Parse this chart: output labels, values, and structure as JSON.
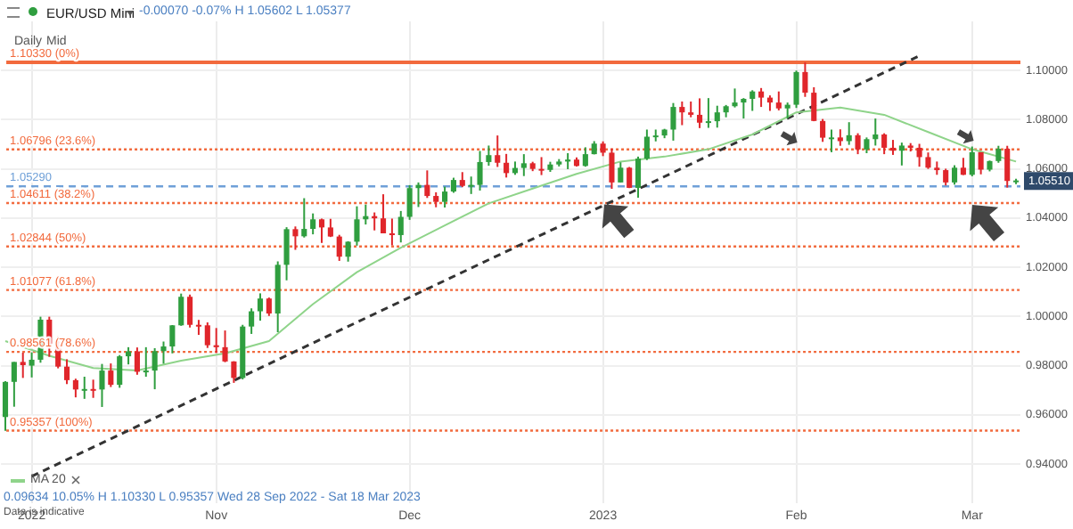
{
  "chart_data": {
    "type": "candlestick",
    "title": "EUR/USD Mini",
    "annotations": [
      "-0.00070 -0.07% H 1.05602 L 1.05377",
      "Daily",
      "Mid",
      "0.09634 10.05% H 1.10330 L 0.95357 Wed 28 Sep 2022 - Sat 18 Mar 2023",
      "Data is indicative",
      {
        "text": "1.05510",
        "y": 1.0551
      }
    ],
    "categories": [
      null,
      null,
      null,
      "2022",
      null,
      null,
      null,
      null,
      null,
      null,
      null,
      null,
      null,
      null,
      null,
      null,
      null,
      null,
      null,
      null,
      null,
      null,
      null,
      null,
      "Nov",
      null,
      null,
      null,
      null,
      null,
      null,
      null,
      null,
      null,
      null,
      null,
      null,
      null,
      null,
      null,
      null,
      null,
      null,
      null,
      null,
      null,
      "Dec",
      null,
      null,
      null,
      null,
      null,
      null,
      null,
      null,
      null,
      null,
      null,
      null,
      null,
      null,
      null,
      null,
      null,
      null,
      null,
      null,
      null,
      "2023",
      null,
      null,
      null,
      null,
      null,
      null,
      null,
      null,
      null,
      null,
      null,
      null,
      null,
      null,
      null,
      null,
      null,
      null,
      null,
      null,
      null,
      "Feb",
      null,
      null,
      null,
      null,
      null,
      null,
      null,
      null,
      null,
      null,
      null,
      null,
      null,
      null,
      null,
      null,
      null,
      null,
      null,
      "Mar",
      null,
      null,
      null,
      null,
      null
    ],
    "ohlc": [
      [
        0.9591,
        0.9737,
        0.9535,
        0.9734
      ],
      [
        0.9734,
        0.9815,
        0.9633,
        0.9815
      ],
      [
        0.9815,
        0.9853,
        0.975,
        0.9802
      ],
      [
        0.98,
        0.9854,
        0.9752,
        0.9824
      ],
      [
        0.9824,
        0.9999,
        0.9812,
        0.9987
      ],
      [
        0.9987,
        0.9999,
        0.9836,
        0.9885
      ],
      [
        0.9885,
        0.992,
        0.9789,
        0.9796
      ],
      [
        0.9796,
        0.9826,
        0.9725,
        0.9741
      ],
      [
        0.9741,
        0.9747,
        0.9671,
        0.9703
      ],
      [
        0.9703,
        0.9755,
        0.9665,
        0.9705
      ],
      [
        0.9705,
        0.9743,
        0.9669,
        0.9703
      ],
      [
        0.9703,
        0.9807,
        0.9632,
        0.978
      ],
      [
        0.978,
        0.9809,
        0.9713,
        0.9722
      ],
      [
        0.9722,
        0.9843,
        0.971,
        0.9838
      ],
      [
        0.9838,
        0.9875,
        0.9805,
        0.9858
      ],
      [
        0.9858,
        0.9874,
        0.9763,
        0.9775
      ],
      [
        0.9775,
        0.9875,
        0.9755,
        0.978
      ],
      [
        0.978,
        0.9871,
        0.9704,
        0.9859
      ],
      [
        0.9859,
        0.9898,
        0.9808,
        0.9878
      ],
      [
        0.9878,
        0.9965,
        0.985,
        0.9964
      ],
      [
        0.9964,
        1.0093,
        0.9962,
        1.008
      ],
      [
        1.008,
        1.0089,
        0.9955,
        0.9966
      ],
      [
        0.9966,
        0.9986,
        0.9925,
        0.9964
      ],
      [
        0.9964,
        0.9976,
        0.9872,
        0.9883
      ],
      [
        0.9883,
        0.9953,
        0.9852,
        0.9875
      ],
      [
        0.9875,
        0.9943,
        0.9814,
        0.9817
      ],
      [
        0.9817,
        0.9818,
        0.973,
        0.975
      ],
      [
        0.975,
        0.9966,
        0.9744,
        0.9959
      ],
      [
        0.9959,
        1.0033,
        0.9929,
        1.0021
      ],
      [
        1.0021,
        1.0094,
        0.9983,
        1.0073
      ],
      [
        1.0073,
        1.0077,
        1.0002,
        1.0012
      ],
      [
        1.0012,
        1.0224,
        0.9936,
        1.021
      ],
      [
        1.021,
        1.0363,
        1.0147,
        1.0355
      ],
      [
        1.0355,
        1.0366,
        1.0271,
        1.0326
      ],
      [
        1.0326,
        1.0481,
        1.0321,
        1.0356
      ],
      [
        1.0356,
        1.0419,
        1.0334,
        1.0395
      ],
      [
        1.0395,
        1.0398,
        1.0299,
        1.0362
      ],
      [
        1.0362,
        1.0397,
        1.0323,
        1.0325
      ],
      [
        1.0325,
        1.0332,
        1.0226,
        1.0243
      ],
      [
        1.0243,
        1.0306,
        1.0223,
        1.0304
      ],
      [
        1.0304,
        1.0448,
        1.0288,
        1.0395
      ],
      [
        1.0395,
        1.0455,
        1.0374,
        1.0408
      ],
      [
        1.0408,
        1.0423,
        1.035,
        1.0399
      ],
      [
        1.0399,
        1.0497,
        1.0338,
        1.0338
      ],
      [
        1.0338,
        1.0398,
        1.0289,
        1.0331
      ],
      [
        1.0331,
        1.0429,
        1.0301,
        1.0405
      ],
      [
        1.0405,
        1.0534,
        1.0393,
        1.0522
      ],
      [
        1.0522,
        1.0545,
        1.0445,
        1.0535
      ],
      [
        1.0535,
        1.0594,
        1.0482,
        1.049
      ],
      [
        1.049,
        1.0505,
        1.0444,
        1.0466
      ],
      [
        1.0466,
        1.0528,
        1.0443,
        1.0508
      ],
      [
        1.0508,
        1.0564,
        1.0503,
        1.0555
      ],
      [
        1.0555,
        1.0587,
        1.0526,
        1.0531
      ],
      [
        1.0531,
        1.0569,
        1.0498,
        1.0535
      ],
      [
        1.0535,
        1.0673,
        1.0512,
        1.0628
      ],
      [
        1.0628,
        1.0695,
        1.0613,
        1.0656
      ],
      [
        1.0656,
        1.0736,
        1.0608,
        1.0625
      ],
      [
        1.0625,
        1.0661,
        1.0565,
        1.0583
      ],
      [
        1.0583,
        1.063,
        1.0576,
        1.0604
      ],
      [
        1.0604,
        1.066,
        1.0571,
        1.0623
      ],
      [
        1.0623,
        1.0629,
        1.0591,
        1.06
      ],
      [
        1.06,
        1.0648,
        1.0575,
        1.0596
      ],
      [
        1.0596,
        1.0629,
        1.0588,
        1.0618
      ],
      [
        1.0618,
        1.064,
        1.061,
        1.063
      ],
      [
        1.063,
        1.0664,
        1.0599,
        1.0638
      ],
      [
        1.0638,
        1.0647,
        1.061,
        1.0612
      ],
      [
        1.0612,
        1.0688,
        1.0609,
        1.066
      ],
      [
        1.066,
        1.0713,
        1.0659,
        1.0703
      ],
      [
        1.0703,
        1.0712,
        1.0652,
        1.0666
      ],
      [
        1.0666,
        1.0683,
        1.0519,
        1.0545
      ],
      [
        1.0545,
        1.0627,
        1.0545,
        1.0605
      ],
      [
        1.0605,
        1.0608,
        1.0522,
        1.0523
      ],
      [
        1.0523,
        1.065,
        1.0483,
        1.0642
      ],
      [
        1.0642,
        1.076,
        1.0636,
        1.0731
      ],
      [
        1.0731,
        1.076,
        1.0712,
        1.0736
      ],
      [
        1.0736,
        1.0763,
        1.0725,
        1.076
      ],
      [
        1.076,
        1.0868,
        1.0715,
        1.0852
      ],
      [
        1.0852,
        1.0874,
        1.0778,
        1.083
      ],
      [
        1.083,
        1.0874,
        1.081,
        1.082
      ],
      [
        1.082,
        1.0887,
        1.0766,
        1.0788
      ],
      [
        1.0788,
        1.0888,
        1.0767,
        1.0794
      ],
      [
        1.0794,
        1.0857,
        1.0768,
        1.083
      ],
      [
        1.083,
        1.086,
        1.081,
        1.0855
      ],
      [
        1.0855,
        1.0927,
        1.085,
        1.087
      ],
      [
        1.087,
        1.0888,
        1.0805,
        1.0885
      ],
      [
        1.0885,
        1.092,
        1.0836,
        1.0915
      ],
      [
        1.0915,
        1.0929,
        1.0852,
        1.089
      ],
      [
        1.089,
        1.0899,
        1.0836,
        1.087
      ],
      [
        1.087,
        1.0915,
        1.0838,
        1.0846
      ],
      [
        1.0846,
        1.087,
        1.0805,
        1.0861
      ],
      [
        1.0861,
        1.1,
        1.0848,
        1.0994
      ],
      [
        1.0994,
        1.1033,
        1.0893,
        1.091
      ],
      [
        1.091,
        1.0932,
        1.0794,
        1.0795
      ],
      [
        1.0795,
        1.0803,
        1.071,
        1.0727
      ],
      [
        1.0727,
        1.076,
        1.0668,
        1.0728
      ],
      [
        1.0728,
        1.0761,
        1.0694,
        1.0713
      ],
      [
        1.0713,
        1.079,
        1.0698,
        1.0737
      ],
      [
        1.0737,
        1.0745,
        1.066,
        1.0679
      ],
      [
        1.0679,
        1.0728,
        1.0664,
        1.0721
      ],
      [
        1.0721,
        1.0805,
        1.0695,
        1.074
      ],
      [
        1.074,
        1.0745,
        1.066,
        1.0686
      ],
      [
        1.0686,
        1.0718,
        1.0657,
        1.0674
      ],
      [
        1.0674,
        1.0707,
        1.0614,
        1.0695
      ],
      [
        1.0695,
        1.0705,
        1.0671,
        1.0686
      ],
      [
        1.0686,
        1.0702,
        1.0609,
        1.0648
      ],
      [
        1.0648,
        1.0667,
        1.06,
        1.0605
      ],
      [
        1.0605,
        1.063,
        1.0576,
        1.0595
      ],
      [
        1.0595,
        1.0601,
        1.0533,
        1.0545
      ],
      [
        1.0545,
        1.0615,
        1.0536,
        1.0605
      ],
      [
        1.0605,
        1.0645,
        1.0575,
        1.0576
      ],
      [
        1.0576,
        1.0691,
        1.057,
        1.0668
      ],
      [
        1.0668,
        1.0668,
        1.0578,
        1.0597
      ],
      [
        1.0597,
        1.0634,
        1.059,
        1.0632
      ],
      [
        1.0632,
        1.0694,
        1.0625,
        1.0682
      ],
      [
        1.0682,
        1.0694,
        1.0524,
        1.0551
      ],
      [
        1.0551,
        1.056,
        1.0538,
        1.0553
      ]
    ],
    "colors": [
      "#2f9e3f",
      "#2f9e3f",
      "#e0262b",
      "#2f9e3f",
      "#2f9e3f",
      "#e0262b",
      "#e0262b",
      "#e0262b",
      "#e0262b",
      "#2f9e3f",
      "#e0262b",
      "#2f9e3f",
      "#e0262b",
      "#2f9e3f",
      "#2f9e3f",
      "#e0262b",
      "#2f9e3f",
      "#2f9e3f",
      "#2f9e3f",
      "#2f9e3f",
      "#2f9e3f",
      "#e0262b",
      "#e0262b",
      "#e0262b",
      "#e0262b",
      "#e0262b",
      "#e0262b",
      "#2f9e3f",
      "#2f9e3f",
      "#2f9e3f",
      "#e0262b",
      "#2f9e3f",
      "#2f9e3f",
      "#e0262b",
      "#2f9e3f",
      "#2f9e3f",
      "#e0262b",
      "#e0262b",
      "#e0262b",
      "#2f9e3f",
      "#2f9e3f",
      "#2f9e3f",
      "#e0262b",
      "#e0262b",
      "#e0262b",
      "#2f9e3f",
      "#2f9e3f",
      "#2f9e3f",
      "#e0262b",
      "#e0262b",
      "#2f9e3f",
      "#2f9e3f",
      "#e0262b",
      "#2f9e3f",
      "#2f9e3f",
      "#2f9e3f",
      "#e0262b",
      "#e0262b",
      "#2f9e3f",
      "#2f9e3f",
      "#e0262b",
      "#e0262b",
      "#2f9e3f",
      "#2f9e3f",
      "#2f9e3f",
      "#e0262b",
      "#2f9e3f",
      "#2f9e3f",
      "#e0262b",
      "#e0262b",
      "#2f9e3f",
      "#e0262b",
      "#2f9e3f",
      "#2f9e3f",
      "#2f9e3f",
      "#2f9e3f",
      "#2f9e3f",
      "#e0262b",
      "#e0262b",
      "#e0262b",
      "#2f9e3f",
      "#2f9e3f",
      "#2f9e3f",
      "#2f9e3f",
      "#2f9e3f",
      "#2f9e3f",
      "#e0262b",
      "#e0262b",
      "#e0262b",
      "#2f9e3f",
      "#2f9e3f",
      "#e0262b",
      "#e0262b",
      "#e0262b",
      "#2f9e3f",
      "#e0262b",
      "#2f9e3f",
      "#e0262b",
      "#2f9e3f",
      "#2f9e3f",
      "#e0262b",
      "#e0262b",
      "#2f9e3f",
      "#e0262b",
      "#e0262b",
      "#e0262b",
      "#e0262b",
      "#e0262b",
      "#2f9e3f",
      "#e0262b",
      "#2f9e3f",
      "#e0262b",
      "#2f9e3f",
      "#2f9e3f",
      "#e0262b",
      "#2f9e3f"
    ],
    "series": [
      {
        "name": "MA 20",
        "type": "line",
        "color": "#8fd48a",
        "values": [
          0.99,
          null,
          null,
          null,
          null,
          0.984,
          null,
          null,
          null,
          null,
          0.979,
          null,
          null,
          null,
          null,
          0.978,
          null,
          null,
          null,
          null,
          0.982,
          null,
          null,
          null,
          null,
          0.985,
          null,
          null,
          null,
          null,
          0.99,
          null,
          null,
          null,
          null,
          1.005,
          null,
          null,
          null,
          null,
          1.018,
          null,
          null,
          null,
          null,
          1.028,
          null,
          null,
          null,
          null,
          1.037,
          null,
          null,
          null,
          null,
          1.046,
          null,
          null,
          null,
          null,
          1.052,
          null,
          null,
          null,
          null,
          1.058,
          null,
          null,
          null,
          null,
          1.063,
          null,
          null,
          null,
          null,
          1.065,
          null,
          null,
          null,
          null,
          1.068,
          null,
          null,
          null,
          null,
          1.074,
          null,
          null,
          null,
          null,
          1.083,
          null,
          null,
          null,
          null,
          1.085,
          null,
          null,
          null,
          null,
          1.082,
          null,
          null,
          null,
          null,
          1.075,
          null,
          null,
          null,
          null,
          1.068,
          null,
          null,
          null,
          null,
          1.063
        ]
      },
      {
        "type": "line",
        "color": "#333333",
        "line_style": "dashed",
        "values": [
          null,
          null,
          null,
          0.935,
          null,
          null,
          null,
          null,
          null,
          null,
          null,
          null,
          null,
          null,
          null,
          null,
          null,
          null,
          null,
          null,
          null,
          null,
          null,
          null,
          null,
          null,
          null,
          null,
          null,
          null,
          null,
          null,
          null,
          null,
          null,
          null,
          null,
          null,
          null,
          null,
          null,
          null,
          null,
          null,
          null,
          null,
          null,
          null,
          null,
          null,
          null,
          null,
          null,
          null,
          null,
          null,
          null,
          null,
          null,
          null,
          null,
          null,
          null,
          null,
          null,
          null,
          null,
          null,
          null,
          null,
          null,
          null,
          null,
          null,
          null,
          null,
          null,
          null,
          null,
          null,
          null,
          null,
          null,
          null,
          null,
          null,
          null,
          null,
          null,
          null,
          null,
          null,
          null,
          null,
          null,
          null,
          null,
          null,
          null,
          null,
          null,
          null,
          null,
          null,
          1.106,
          null,
          null,
          null,
          null,
          null,
          null,
          null,
          null,
          null,
          null,
          null
        ]
      }
    ],
    "ylim": [
      0.924,
      1.12
    ],
    "yticks": [
      {
        "value": 0.94,
        "label": "0.94000"
      },
      {
        "value": 0.96,
        "label": "0.96000"
      },
      {
        "value": 0.98,
        "label": "0.98000"
      },
      {
        "value": 1.0,
        "label": "1.00000"
      },
      {
        "value": 1.02,
        "label": "1.02000"
      },
      {
        "value": 1.04,
        "label": "1.04000"
      },
      {
        "value": 1.06,
        "label": "1.06000"
      },
      {
        "value": 1.08,
        "label": "1.08000"
      },
      {
        "value": 1.1,
        "label": "1.10000"
      }
    ],
    "ref_lines": [
      {
        "axis": "y",
        "value": 1.1033,
        "label": "1.10330 (0%)",
        "color": "#f26a3d",
        "line_style": "solid"
      },
      {
        "axis": "y",
        "value": 1.06796,
        "label": "1.06796 (23.6%)",
        "color": "#f26a3d",
        "line_style": "dotted"
      },
      {
        "axis": "y",
        "value": 1.04611,
        "label": "1.04611 (38.2%)",
        "color": "#f26a3d",
        "line_style": "dotted"
      },
      {
        "axis": "y",
        "value": 1.02844,
        "label": "1.02844 (50%)",
        "color": "#f26a3d",
        "line_style": "dotted"
      },
      {
        "axis": "y",
        "value": 1.01077,
        "label": "1.01077 (61.8%)",
        "color": "#f26a3d",
        "line_style": "dotted"
      },
      {
        "axis": "y",
        "value": 0.98561,
        "label": "0.98561 (78.6%)",
        "color": "#f26a3d",
        "line_style": "dotted"
      },
      {
        "axis": "y",
        "value": 0.95357,
        "label": "0.95357 (100%)",
        "color": "#f26a3d",
        "line_style": "dotted"
      },
      {
        "axis": "y",
        "value": 1.0529,
        "label": "1.05290",
        "color": "#6fa0d8",
        "line_style": "dashed"
      }
    ],
    "grid": true,
    "legend": "bottom left"
  }
}
